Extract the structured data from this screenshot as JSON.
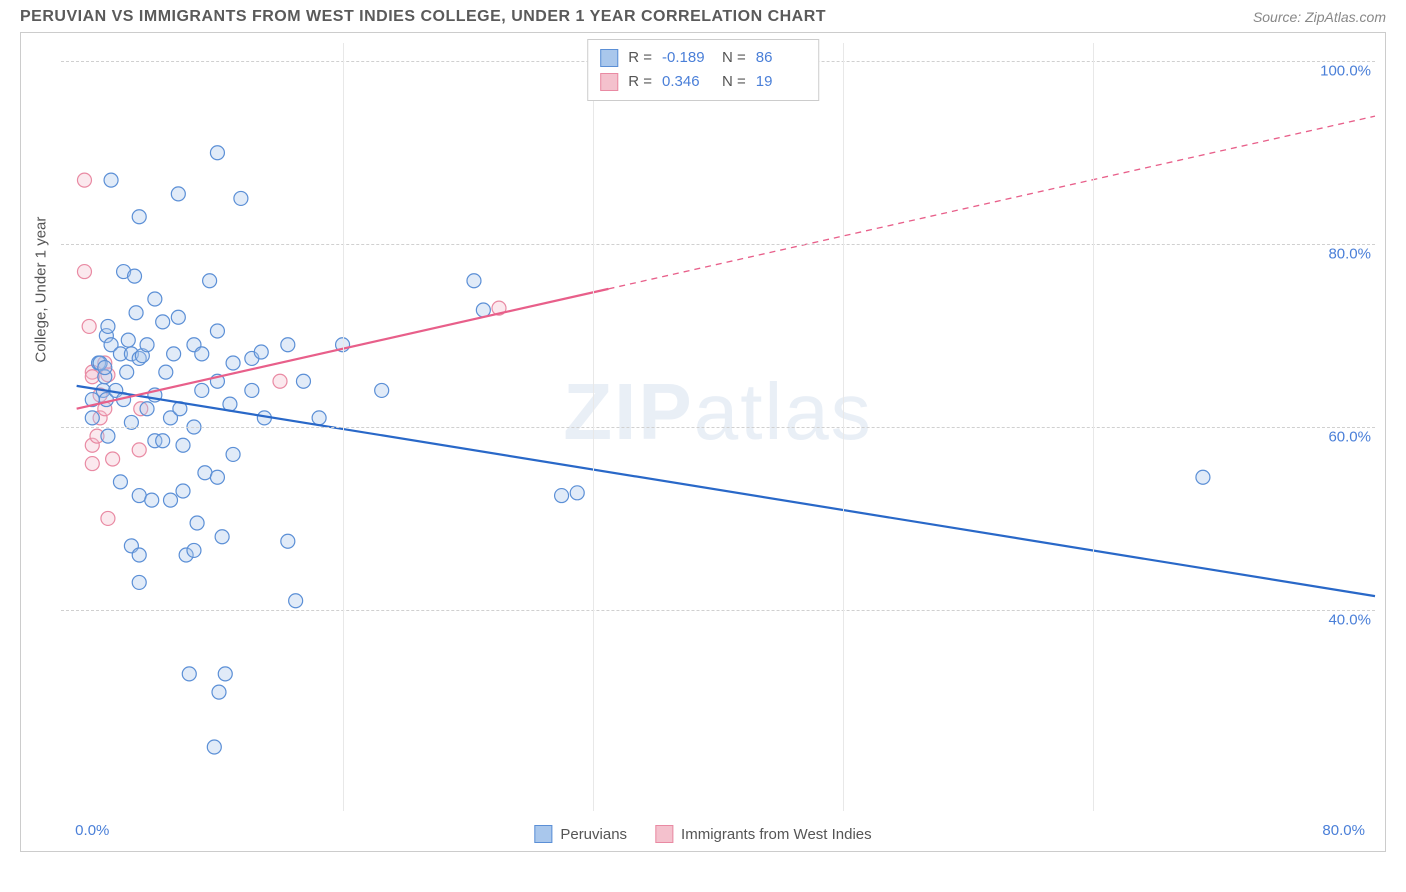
{
  "header": {
    "title": "PERUVIAN VS IMMIGRANTS FROM WEST INDIES COLLEGE, UNDER 1 YEAR CORRELATION CHART",
    "source_prefix": "Source: ",
    "source_name": "ZipAtlas.com"
  },
  "chart": {
    "type": "scatter",
    "watermark": "ZIPatlas",
    "y_axis_title": "College, Under 1 year",
    "background_color": "#ffffff",
    "grid_color": "#d0d0d0",
    "border_color": "#cccccc",
    "x_domain": [
      -2,
      82
    ],
    "y_domain": [
      18,
      102
    ],
    "x_ticks": [
      {
        "pos": 0,
        "label": "0.0%"
      },
      {
        "pos": 80,
        "label": "80.0%"
      }
    ],
    "x_gridlines_minor": [
      16,
      32,
      48,
      64
    ],
    "y_ticks": [
      {
        "pos": 40,
        "label": "40.0%"
      },
      {
        "pos": 60,
        "label": "60.0%"
      },
      {
        "pos": 80,
        "label": "80.0%"
      },
      {
        "pos": 100,
        "label": "100.0%"
      }
    ],
    "marker_radius": 7,
    "marker_stroke_width": 1.2,
    "marker_fill_opacity": 0.35,
    "line_width": 2.2,
    "series": [
      {
        "id": "peruvians",
        "label": "Peruvians",
        "color_fill": "#a9c7ec",
        "color_stroke": "#5b8fd6",
        "line_color": "#2968c8",
        "R": "-0.189",
        "N": "86",
        "trend": {
          "x1": -1,
          "y1": 64.5,
          "x2": 82,
          "y2": 41.5,
          "dashed_from_x": null
        },
        "points": [
          [
            0,
            61
          ],
          [
            0,
            63
          ],
          [
            0.4,
            67
          ],
          [
            0.5,
            67
          ],
          [
            0.7,
            64
          ],
          [
            0.8,
            65.5
          ],
          [
            0.8,
            66.5
          ],
          [
            0.9,
            70
          ],
          [
            0.9,
            63
          ],
          [
            1,
            59
          ],
          [
            1,
            71
          ],
          [
            1.2,
            69
          ],
          [
            1.2,
            87
          ],
          [
            1.5,
            64
          ],
          [
            1.8,
            68
          ],
          [
            1.8,
            54
          ],
          [
            2,
            63
          ],
          [
            2,
            77
          ],
          [
            2.2,
            66
          ],
          [
            2.3,
            69.5
          ],
          [
            2.5,
            68
          ],
          [
            2.5,
            60.5
          ],
          [
            2.5,
            47
          ],
          [
            2.7,
            76.5
          ],
          [
            2.8,
            72.5
          ],
          [
            3,
            83
          ],
          [
            3,
            67.5
          ],
          [
            3,
            52.5
          ],
          [
            3,
            46
          ],
          [
            3,
            43
          ],
          [
            3.2,
            67.8
          ],
          [
            3.5,
            69
          ],
          [
            3.5,
            62
          ],
          [
            3.8,
            52
          ],
          [
            4,
            74
          ],
          [
            4,
            63.5
          ],
          [
            4,
            58.5
          ],
          [
            4.5,
            71.5
          ],
          [
            4.5,
            58.5
          ],
          [
            4.7,
            66
          ],
          [
            5,
            61
          ],
          [
            5,
            52
          ],
          [
            5.2,
            68
          ],
          [
            5.5,
            85.5
          ],
          [
            5.5,
            72
          ],
          [
            5.6,
            62
          ],
          [
            5.8,
            58
          ],
          [
            5.8,
            53
          ],
          [
            6,
            46
          ],
          [
            6.2,
            33
          ],
          [
            6.5,
            69
          ],
          [
            6.5,
            60
          ],
          [
            6.5,
            46.5
          ],
          [
            6.7,
            49.5
          ],
          [
            7,
            68
          ],
          [
            7,
            64
          ],
          [
            7.2,
            55
          ],
          [
            7.5,
            76
          ],
          [
            7.8,
            25
          ],
          [
            8,
            90
          ],
          [
            8,
            70.5
          ],
          [
            8,
            65
          ],
          [
            8,
            54.5
          ],
          [
            8.1,
            31
          ],
          [
            8.3,
            48
          ],
          [
            8.5,
            33
          ],
          [
            8.8,
            62.5
          ],
          [
            9,
            67
          ],
          [
            9,
            57
          ],
          [
            9.5,
            85
          ],
          [
            10.2,
            67.5
          ],
          [
            10.2,
            64
          ],
          [
            10.8,
            68.2
          ],
          [
            11,
            61
          ],
          [
            12.5,
            69
          ],
          [
            12.5,
            47.5
          ],
          [
            13,
            41
          ],
          [
            13.5,
            65
          ],
          [
            14.5,
            61
          ],
          [
            16,
            69
          ],
          [
            18.5,
            64
          ],
          [
            24.4,
            76
          ],
          [
            25,
            72.8
          ],
          [
            30,
            52.5
          ],
          [
            31,
            52.8
          ],
          [
            71,
            54.5
          ]
        ]
      },
      {
        "id": "west_indies",
        "label": "Immigrants from West Indies",
        "color_fill": "#f4c1cd",
        "color_stroke": "#e98aa3",
        "line_color": "#e85f8a",
        "R": "0.346",
        "N": "19",
        "trend": {
          "x1": -1,
          "y1": 62,
          "x2": 82,
          "y2": 94,
          "dashed_from_x": 33
        },
        "points": [
          [
            -0.5,
            87
          ],
          [
            -0.5,
            77
          ],
          [
            -0.2,
            71
          ],
          [
            0,
            66
          ],
          [
            0,
            65.5
          ],
          [
            0,
            58
          ],
          [
            0,
            56
          ],
          [
            0.3,
            59
          ],
          [
            0.5,
            61
          ],
          [
            0.5,
            63.5
          ],
          [
            0.8,
            67
          ],
          [
            0.8,
            62
          ],
          [
            1,
            65.7
          ],
          [
            1,
            50
          ],
          [
            1.3,
            56.5
          ],
          [
            3,
            57.5
          ],
          [
            3.1,
            62
          ],
          [
            12,
            65
          ],
          [
            26,
            73
          ]
        ]
      }
    ],
    "legend_top": {
      "r_label": "R =",
      "n_label": "N ="
    },
    "label_color": "#4a7fd8",
    "title_color": "#5a5a5a",
    "axis_fontsize": 15,
    "title_fontsize": 16
  }
}
